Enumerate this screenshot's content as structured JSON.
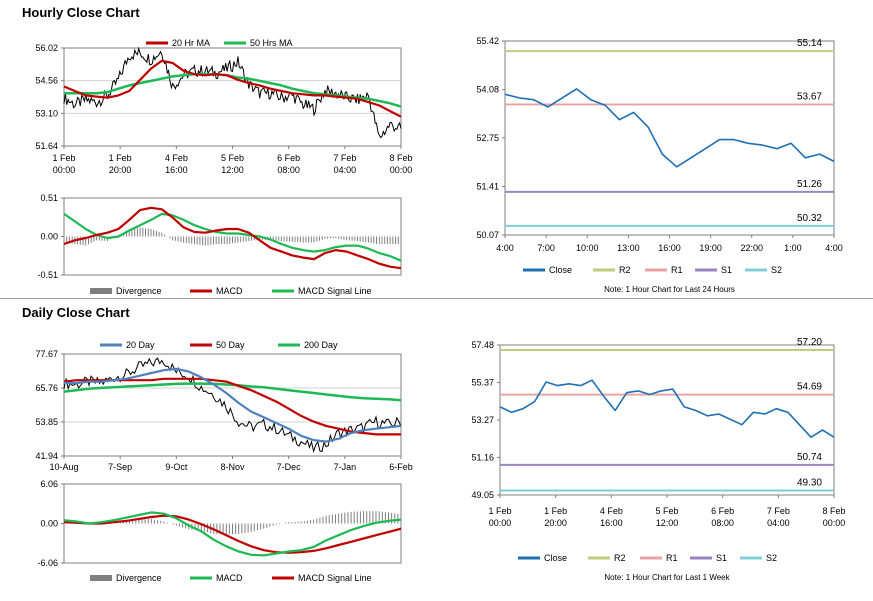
{
  "hourly": {
    "title": "Hourly Close Chart",
    "price_panel": {
      "chart_data": {
        "type": "line",
        "ylim": [
          51.64,
          56.02
        ],
        "yticks": [
          "56.02",
          "54.56",
          "53.10",
          "51.64"
        ],
        "xticks": [
          [
            "1 Feb",
            "00:00"
          ],
          [
            "1 Feb",
            "20:00"
          ],
          [
            "4 Feb",
            "16:00"
          ],
          [
            "5 Feb",
            "12:00"
          ],
          [
            "6 Feb",
            "08:00"
          ],
          [
            "7 Feb",
            "04:00"
          ],
          [
            "8 Feb",
            "00:00"
          ]
        ],
        "legend": [
          "20 Hr MA",
          "50 Hrs MA"
        ],
        "colors": {
          "ma_short": "#c00000",
          "ma_long": "#1db954",
          "price": "#000000"
        },
        "series": [
          {
            "name": "20 Hr MA",
            "values": [
              54.3,
              54.1,
              53.9,
              53.85,
              53.8,
              53.9,
              54.1,
              54.6,
              55.1,
              55.45,
              55.35,
              55.0,
              54.85,
              54.8,
              54.85,
              54.8,
              54.6,
              54.45,
              54.35,
              54.2,
              54.1,
              54.0,
              53.95,
              53.9,
              53.9,
              53.85,
              53.8,
              53.75,
              53.6,
              53.45,
              53.2,
              52.95
            ]
          },
          {
            "name": "50 Hrs MA",
            "values": [
              54.0,
              54.0,
              54.0,
              54.0,
              54.05,
              54.2,
              54.35,
              54.45,
              54.55,
              54.65,
              54.75,
              54.8,
              54.85,
              54.85,
              54.85,
              54.8,
              54.7,
              54.65,
              54.55,
              54.45,
              54.35,
              54.2,
              54.1,
              54.0,
              53.95,
              53.9,
              53.85,
              53.8,
              53.75,
              53.65,
              53.55,
              53.4
            ]
          },
          {
            "name": "price",
            "values": [
              53.8,
              53.5,
              53.7,
              53.6,
              53.9,
              54.6,
              55.7,
              55.8,
              55.5,
              55.9,
              54.3,
              54.8,
              55.0,
              55.0,
              54.9,
              55.1,
              55.4,
              54.4,
              54.0,
              54.0,
              53.8,
              53.9,
              53.5,
              53.3,
              54.1,
              54.0,
              53.8,
              53.7,
              53.9,
              52.0,
              52.6,
              52.4
            ]
          }
        ]
      }
    },
    "macd_panel": {
      "chart_data": {
        "type": "line",
        "ylim": [
          -0.51,
          0.51
        ],
        "yticks": [
          "0.51",
          "0.00",
          "-0.51"
        ],
        "legend": [
          "Divergence",
          "MACD",
          "MACD Signal Line"
        ],
        "colors": {
          "macd": "#c00000",
          "signal": "#1db954",
          "divergence": "#7f7f7f"
        },
        "series": [
          {
            "name": "MACD",
            "values": [
              -0.1,
              -0.05,
              -0.02,
              0.02,
              0.05,
              0.1,
              0.22,
              0.35,
              0.38,
              0.36,
              0.25,
              0.12,
              0.06,
              0.05,
              0.08,
              0.1,
              0.1,
              0.05,
              -0.05,
              -0.15,
              -0.2,
              -0.25,
              -0.28,
              -0.3,
              -0.22,
              -0.18,
              -0.2,
              -0.25,
              -0.3,
              -0.36,
              -0.4,
              -0.42
            ]
          },
          {
            "name": "MACD Signal Line",
            "values": [
              0.3,
              0.2,
              0.1,
              0.02,
              -0.02,
              0.0,
              0.08,
              0.15,
              0.22,
              0.3,
              0.28,
              0.22,
              0.15,
              0.1,
              0.06,
              0.04,
              0.04,
              0.02,
              0.0,
              -0.04,
              -0.1,
              -0.15,
              -0.18,
              -0.2,
              -0.18,
              -0.14,
              -0.12,
              -0.12,
              -0.16,
              -0.22,
              -0.26,
              -0.32
            ]
          },
          {
            "name": "Divergence",
            "values": [
              -0.08,
              -0.1,
              -0.12,
              -0.05,
              -0.06,
              0.02,
              0.08,
              0.12,
              0.1,
              0.05,
              -0.05,
              -0.08,
              -0.1,
              -0.12,
              -0.1,
              -0.1,
              -0.08,
              -0.06,
              -0.04,
              -0.05,
              -0.06,
              -0.07,
              -0.08,
              -0.08,
              -0.03,
              -0.02,
              -0.05,
              -0.06,
              -0.08,
              -0.1,
              -0.1,
              -0.1
            ]
          }
        ]
      }
    },
    "pivot_panel": {
      "chart_data": {
        "type": "line",
        "ylim": [
          50.07,
          55.42
        ],
        "yticks": [
          "55.42",
          "54.08",
          "52.75",
          "51.41",
          "50.07"
        ],
        "xticks": [
          "4:00",
          "7:00",
          "10:00",
          "13:00",
          "16:00",
          "19:00",
          "22:00",
          "1:00",
          "4:00"
        ],
        "legend": [
          "Close",
          "R2",
          "R1",
          "S1",
          "S2"
        ],
        "colors": {
          "close": "#1f6fb5",
          "r2": "#bccf7a",
          "r1": "#e8a5a5",
          "s1": "#9a86c0",
          "s2": "#7fcfd8"
        },
        "levels": {
          "R2": 55.14,
          "R1": 53.67,
          "S1": 51.26,
          "S2": 50.32
        },
        "level_labels": {
          "R2": "55.14",
          "R1": "53.67",
          "S1": "51.26",
          "S2": "50.32"
        },
        "series": [
          {
            "name": "Close",
            "values": [
              53.95,
              53.85,
              53.8,
              53.6,
              53.85,
              54.1,
              53.8,
              53.65,
              53.25,
              53.45,
              53.05,
              52.3,
              51.95,
              52.2,
              52.45,
              52.7,
              52.7,
              52.6,
              52.55,
              52.45,
              52.6,
              52.2,
              52.3,
              52.1
            ]
          }
        ],
        "note": "Note: 1 Hour Chart for Last 24 Hours"
      }
    }
  },
  "daily": {
    "title": "Daily Close Chart",
    "price_panel": {
      "chart_data": {
        "type": "line",
        "ylim": [
          41.94,
          77.67
        ],
        "yticks": [
          "77.67",
          "65.76",
          "53.85",
          "41.94"
        ],
        "xticks": [
          "10-Aug",
          "7-Sep",
          "9-Oct",
          "8-Nov",
          "7-Dec",
          "7-Jan",
          "6-Feb"
        ],
        "legend": [
          "20 Day",
          "50 Day",
          "200 Day"
        ],
        "colors": {
          "ma20": "#4f81bd",
          "ma50": "#c00000",
          "ma200": "#1db954",
          "price": "#000000"
        },
        "series": [
          {
            "name": "20 Day",
            "values": [
              67.5,
              67.5,
              68.0,
              68.0,
              68.5,
              69.0,
              70.0,
              71.0,
              72.0,
              72.5,
              71.5,
              69.5,
              67.0,
              64.0,
              60.5,
              57.5,
              55.5,
              53.5,
              51.5,
              49.0,
              47.5,
              47.0,
              48.0,
              50.0,
              51.0,
              51.5,
              52.0,
              52.5
            ]
          },
          {
            "name": "50 Day",
            "values": [
              68.0,
              68.5,
              68.5,
              68.5,
              68.5,
              68.5,
              68.5,
              68.5,
              69.0,
              69.0,
              69.0,
              69.0,
              68.5,
              68.0,
              66.5,
              65.0,
              63.0,
              61.0,
              58.5,
              56.0,
              54.0,
              52.5,
              51.5,
              50.5,
              50.0,
              49.5,
              49.5,
              49.5
            ]
          },
          {
            "name": "200 Day",
            "values": [
              64.5,
              65.0,
              65.5,
              65.8,
              66.0,
              66.3,
              66.5,
              66.7,
              67.0,
              67.2,
              67.3,
              67.3,
              67.2,
              67.0,
              66.7,
              66.3,
              66.0,
              65.5,
              65.0,
              64.5,
              64.0,
              63.5,
              63.0,
              62.5,
              62.2,
              62.0,
              61.8,
              61.5
            ]
          },
          {
            "name": "price",
            "values": [
              67.5,
              67.0,
              68.0,
              67.5,
              69.5,
              70.5,
              73.0,
              74.5,
              75.5,
              71.5,
              70.0,
              66.0,
              63.5,
              59.5,
              54.0,
              52.0,
              53.0,
              51.5,
              49.0,
              47.0,
              44.5,
              46.0,
              50.0,
              51.0,
              52.0,
              54.0,
              53.0,
              54.0
            ]
          }
        ]
      }
    },
    "macd_panel": {
      "chart_data": {
        "type": "line",
        "ylim": [
          -6.06,
          6.06
        ],
        "yticks": [
          "6.06",
          "0.00",
          "-6.06"
        ],
        "legend": [
          "Divergence",
          "MACD",
          "MACD Signal Line"
        ],
        "colors": {
          "macd": "#1db954",
          "signal": "#c00000",
          "divergence": "#7f7f7f"
        },
        "series": [
          {
            "name": "MACD",
            "values": [
              0.5,
              0.3,
              0.0,
              0.2,
              0.5,
              0.9,
              1.3,
              1.7,
              1.5,
              0.8,
              -0.3,
              -1.2,
              -2.5,
              -3.5,
              -4.3,
              -4.8,
              -4.9,
              -4.6,
              -4.3,
              -4.1,
              -3.6,
              -2.6,
              -1.8,
              -1.0,
              -0.4,
              0.1,
              0.4,
              0.6
            ]
          },
          {
            "name": "MACD Signal Line",
            "values": [
              0.2,
              0.1,
              0.0,
              0.0,
              0.2,
              0.4,
              0.7,
              1.0,
              1.2,
              1.1,
              0.6,
              -0.1,
              -0.9,
              -1.8,
              -2.7,
              -3.5,
              -4.1,
              -4.4,
              -4.5,
              -4.4,
              -4.2,
              -3.8,
              -3.3,
              -2.8,
              -2.3,
              -1.8,
              -1.3,
              -0.8
            ]
          },
          {
            "name": "Divergence",
            "values": [
              0.3,
              0.2,
              0.0,
              0.2,
              0.3,
              0.5,
              0.6,
              0.7,
              0.3,
              -0.3,
              -0.9,
              -1.1,
              -1.6,
              -1.7,
              -1.6,
              -1.3,
              -0.8,
              -0.2,
              0.2,
              0.3,
              0.6,
              1.2,
              1.5,
              1.8,
              1.9,
              1.9,
              1.7,
              1.4
            ]
          }
        ]
      }
    },
    "pivot_panel": {
      "chart_data": {
        "type": "line",
        "ylim": [
          49.05,
          57.48
        ],
        "yticks": [
          "57.48",
          "55.37",
          "53.27",
          "51.16",
          "49.05"
        ],
        "xticks": [
          [
            "1 Feb",
            "00:00"
          ],
          [
            "1 Feb",
            "20:00"
          ],
          [
            "4 Feb",
            "16:00"
          ],
          [
            "5 Feb",
            "12:00"
          ],
          [
            "6 Feb",
            "08:00"
          ],
          [
            "7 Feb",
            "04:00"
          ],
          [
            "8 Feb",
            "00:00"
          ]
        ],
        "legend": [
          "Close",
          "R2",
          "R1",
          "S1",
          "S2"
        ],
        "colors": {
          "close": "#1f6fb5",
          "r2": "#bccf7a",
          "r1": "#e8a5a5",
          "s1": "#9a86c0",
          "s2": "#7fcfd8"
        },
        "levels": {
          "R2": 57.2,
          "R1": 54.69,
          "S1": 50.74,
          "S2": 49.3
        },
        "level_labels": {
          "R2": "57.20",
          "R1": "54.69",
          "S1": "50.74",
          "S2": "49.30"
        },
        "series": [
          {
            "name": "Close",
            "values": [
              54.0,
              53.7,
              53.9,
              54.3,
              55.4,
              55.2,
              55.3,
              55.2,
              55.5,
              54.6,
              53.8,
              54.8,
              54.9,
              54.7,
              54.9,
              55.0,
              54.0,
              53.8,
              53.5,
              53.6,
              53.3,
              53.0,
              53.7,
              53.6,
              53.9,
              53.7,
              53.0,
              52.3,
              52.7,
              52.3
            ]
          }
        ],
        "note": "Note: 1 Hour Chart for Last 1 Week"
      }
    }
  }
}
